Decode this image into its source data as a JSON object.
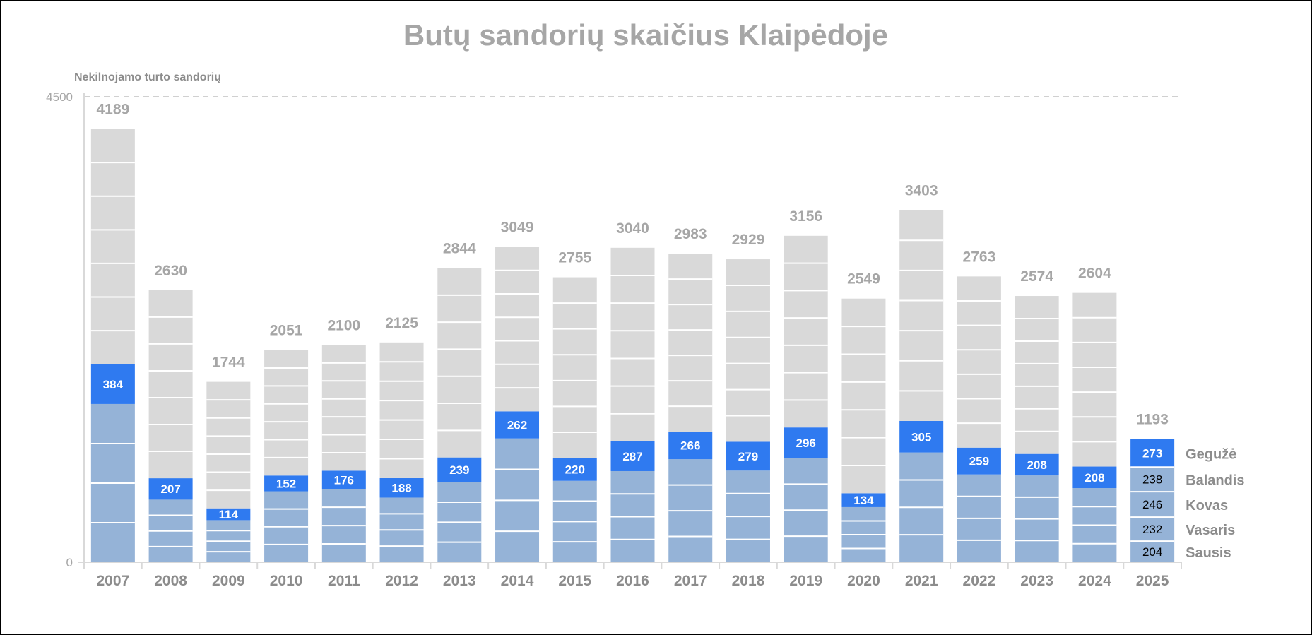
{
  "colors": {
    "background": "#ffffff",
    "ytd_segment": "#95b3d7",
    "highlight_segment": "#2f7af0",
    "rest_segment": "#d9d9d9",
    "separator": "#ffffff",
    "text_grey": "#a6a6a6"
  },
  "chart_data": {
    "type": "bar",
    "title": "Butų sandorių skaičius Klaipėdoje",
    "ylabel": "Nekilnojamo turto sandorių",
    "xlabel": "",
    "ylim": [
      0,
      4500
    ],
    "yticks": [
      "0",
      "4500"
    ],
    "categories": [
      "2007",
      "2008",
      "2009",
      "2010",
      "2011",
      "2012",
      "2013",
      "2014",
      "2015",
      "2016",
      "2017",
      "2018",
      "2019",
      "2020",
      "2021",
      "2022",
      "2023",
      "2024",
      "2025"
    ],
    "totals": [
      4189,
      2630,
      1744,
      2051,
      2100,
      2125,
      2844,
      3049,
      2755,
      3040,
      2983,
      2929,
      3156,
      2549,
      3403,
      2763,
      2574,
      2604,
      1193
    ],
    "may_values": [
      384,
      207,
      114,
      152,
      176,
      188,
      239,
      262,
      220,
      287,
      266,
      279,
      296,
      134,
      305,
      259,
      208,
      208,
      273
    ],
    "jan_apr_totals": [
      1530,
      605,
      407,
      686,
      709,
      625,
      774,
      1197,
      787,
      881,
      996,
      886,
      1007,
      533,
      1061,
      849,
      839,
      717,
      920
    ],
    "months_2025": [
      {
        "name": "Sausis",
        "value": 204
      },
      {
        "name": "Vasaris",
        "value": 232
      },
      {
        "name": "Kovas",
        "value": 246
      },
      {
        "name": "Balandis",
        "value": 238
      },
      {
        "name": "Gegužė",
        "value": 273
      }
    ],
    "grid": false
  }
}
